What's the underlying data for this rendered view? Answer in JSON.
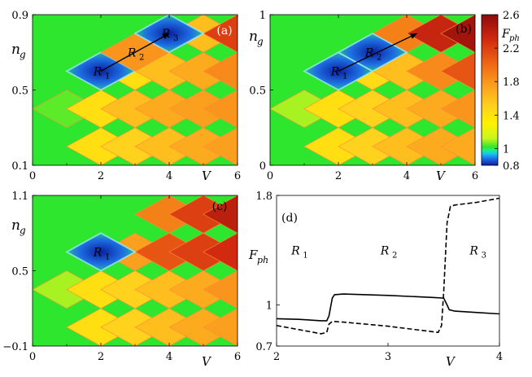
{
  "colors": {
    "background_green": "#2ee62e",
    "cb_stops": [
      "#0a1fa0",
      "#1f63e0",
      "#18c8f5",
      "#20f07a",
      "#2ee62e",
      "#c8f51e",
      "#fff200",
      "#ffd21e",
      "#fba01e",
      "#f06a14",
      "#d22a10",
      "#8c0a0a"
    ],
    "line_color": "#000000",
    "bound_color": "#ff8c3c"
  },
  "chart_data": [
    {
      "id": "a",
      "type": "heatmap",
      "panel_label": "(a)",
      "xlabel": "V",
      "ylabel": "n_g",
      "xlim": [
        0,
        6
      ],
      "ylim": [
        0.1,
        0.9
      ],
      "xticks": [
        "0",
        "2",
        "4",
        "6"
      ],
      "xtick_values": [
        0,
        2,
        4,
        6
      ],
      "yticks": [
        "0.1",
        "0.5",
        "0.9"
      ],
      "ytick_values": [
        0.1,
        0.5,
        0.9
      ],
      "row_spacing": 0.2,
      "ng_base": 0.5,
      "regions": [
        {
          "label": "R",
          "sub": "1",
          "v": 2.0,
          "n": 0.6,
          "value": 0.8
        },
        {
          "label": "R",
          "sub": "2",
          "v": 3.0,
          "n": 0.7,
          "value": 1.8
        },
        {
          "label": "R",
          "sub": "3",
          "v": 4.0,
          "n": 0.8,
          "value": 0.8
        }
      ],
      "arrow": {
        "from": [
          2.0,
          0.6
        ],
        "to": [
          4.0,
          0.8
        ]
      },
      "cells": [
        {
          "v": 1.0,
          "n": 0.4,
          "value": 1.05
        },
        {
          "v": 2.0,
          "n": 0.4,
          "value": 1.42
        },
        {
          "v": 3.0,
          "n": 0.4,
          "value": 1.6
        },
        {
          "v": 4.0,
          "n": 0.4,
          "value": 1.7
        },
        {
          "v": 5.0,
          "n": 0.4,
          "value": 1.75
        },
        {
          "v": 6.0,
          "n": 0.4,
          "value": 1.8
        },
        {
          "v": 2.0,
          "n": 0.2,
          "value": 1.42
        },
        {
          "v": 3.0,
          "n": 0.2,
          "value": 1.5
        },
        {
          "v": 4.0,
          "n": 0.2,
          "value": 1.6
        },
        {
          "v": 5.0,
          "n": 0.2,
          "value": 1.7
        },
        {
          "v": 6.0,
          "n": 0.2,
          "value": 1.75
        },
        {
          "v": 3.0,
          "n": 0.6,
          "value": 1.42
        },
        {
          "v": 4.0,
          "n": 0.6,
          "value": 1.6
        },
        {
          "v": 5.0,
          "n": 0.6,
          "value": 1.7
        },
        {
          "v": 6.0,
          "n": 0.6,
          "value": 1.85
        },
        {
          "v": 5.0,
          "n": 0.8,
          "value": 1.6
        },
        {
          "v": 6.0,
          "n": 0.8,
          "value": 2.2
        },
        {
          "v": 3.0,
          "n": 0.0,
          "value": 1.5
        },
        {
          "v": 4.0,
          "n": 0.0,
          "value": 1.6
        },
        {
          "v": 5.0,
          "n": 0.0,
          "value": 1.7
        },
        {
          "v": 6.0,
          "n": 0.0,
          "value": 1.75
        },
        {
          "v": 5.0,
          "n": 1.0,
          "value": 2.4
        },
        {
          "v": 6.0,
          "n": 1.0,
          "value": 2.4
        },
        {
          "v": 4.0,
          "n": 1.0,
          "value": 2.0
        }
      ]
    },
    {
      "id": "b",
      "type": "heatmap",
      "panel_label": "(b)",
      "xlabel": "V",
      "ylabel": "n_g",
      "xlim": [
        0,
        6
      ],
      "ylim": [
        0,
        1
      ],
      "xticks": [
        "0",
        "2",
        "4",
        "6"
      ],
      "xtick_values": [
        0,
        2,
        4,
        6
      ],
      "yticks": [
        "0",
        "0.5",
        "1"
      ],
      "ytick_values": [
        0,
        0.5,
        1
      ],
      "row_spacing": 0.25,
      "ng_base": 0.5,
      "regions": [
        {
          "label": "R",
          "sub": "1",
          "v": 2.0,
          "n": 0.625,
          "value": 0.8
        },
        {
          "label": "R",
          "sub": "2",
          "v": 3.0,
          "n": 0.75,
          "value": 0.8
        }
      ],
      "arrow": {
        "from": [
          2.0,
          0.625
        ],
        "to": [
          4.3,
          0.875
        ]
      },
      "cells": [
        {
          "v": 1.0,
          "n": 0.375,
          "value": 1.1
        },
        {
          "v": 2.0,
          "n": 0.375,
          "value": 1.42
        },
        {
          "v": 3.0,
          "n": 0.375,
          "value": 1.5
        },
        {
          "v": 4.0,
          "n": 0.375,
          "value": 1.6
        },
        {
          "v": 5.0,
          "n": 0.375,
          "value": 1.7
        },
        {
          "v": 6.0,
          "n": 0.375,
          "value": 1.8
        },
        {
          "v": 2.0,
          "n": 0.125,
          "value": 1.42
        },
        {
          "v": 3.0,
          "n": 0.125,
          "value": 1.5
        },
        {
          "v": 4.0,
          "n": 0.125,
          "value": 1.6
        },
        {
          "v": 5.0,
          "n": 0.125,
          "value": 1.7
        },
        {
          "v": 6.0,
          "n": 0.125,
          "value": 1.7
        },
        {
          "v": 3.0,
          "n": 0.625,
          "value": 1.45
        },
        {
          "v": 4.0,
          "n": 0.625,
          "value": 1.6
        },
        {
          "v": 5.0,
          "n": 0.625,
          "value": 1.85
        },
        {
          "v": 6.0,
          "n": 0.625,
          "value": 2.1
        },
        {
          "v": 4.0,
          "n": 0.875,
          "value": 1.9
        },
        {
          "v": 5.0,
          "n": 0.875,
          "value": 2.35
        },
        {
          "v": 6.0,
          "n": 0.875,
          "value": 2.5
        },
        {
          "v": 3.0,
          "n": -0.125,
          "value": 1.5
        },
        {
          "v": 4.0,
          "n": -0.125,
          "value": 1.6
        },
        {
          "v": 5.0,
          "n": -0.125,
          "value": 1.7
        },
        {
          "v": 6.0,
          "n": -0.125,
          "value": 1.7
        },
        {
          "v": 5.0,
          "n": 1.125,
          "value": 1.7
        },
        {
          "v": 6.0,
          "n": 1.125,
          "value": 1.7
        }
      ]
    },
    {
      "id": "c",
      "type": "heatmap",
      "panel_label": "(c)",
      "xlabel": "V",
      "ylabel": "n_g",
      "xlim": [
        0,
        6
      ],
      "ylim": [
        -0.1,
        1.1
      ],
      "xticks": [
        "0",
        "2",
        "4",
        "6"
      ],
      "xtick_values": [
        0,
        2,
        4,
        6
      ],
      "yticks": [
        "−0.1",
        "0.5",
        "1.1"
      ],
      "ytick_values": [
        -0.1,
        0.5,
        1.1
      ],
      "row_spacing": 0.3,
      "ng_base": 0.5,
      "regions": [
        {
          "label": "R",
          "sub": "1",
          "v": 2.0,
          "n": 0.65,
          "value": 0.8
        }
      ],
      "cells": [
        {
          "v": 1.0,
          "n": 0.35,
          "value": 1.1
        },
        {
          "v": 2.0,
          "n": 0.35,
          "value": 1.42
        },
        {
          "v": 3.0,
          "n": 0.35,
          "value": 1.5
        },
        {
          "v": 4.0,
          "n": 0.35,
          "value": 1.6
        },
        {
          "v": 5.0,
          "n": 0.35,
          "value": 1.7
        },
        {
          "v": 6.0,
          "n": 0.35,
          "value": 1.8
        },
        {
          "v": 2.0,
          "n": 0.05,
          "value": 1.42
        },
        {
          "v": 3.0,
          "n": 0.05,
          "value": 1.5
        },
        {
          "v": 4.0,
          "n": 0.05,
          "value": 1.6
        },
        {
          "v": 5.0,
          "n": 0.05,
          "value": 1.7
        },
        {
          "v": 6.0,
          "n": 0.05,
          "value": 1.75
        },
        {
          "v": 3.0,
          "n": 0.65,
          "value": 1.75
        },
        {
          "v": 4.0,
          "n": 0.65,
          "value": 2.1
        },
        {
          "v": 5.0,
          "n": 0.65,
          "value": 2.2
        },
        {
          "v": 6.0,
          "n": 0.65,
          "value": 2.3
        },
        {
          "v": 4.0,
          "n": 0.95,
          "value": 1.9
        },
        {
          "v": 5.0,
          "n": 0.95,
          "value": 2.2
        },
        {
          "v": 6.0,
          "n": 0.95,
          "value": 2.4
        },
        {
          "v": 3.0,
          "n": -0.25,
          "value": 1.5
        },
        {
          "v": 4.0,
          "n": -0.25,
          "value": 1.6
        },
        {
          "v": 5.0,
          "n": -0.25,
          "value": 1.7
        },
        {
          "v": 6.0,
          "n": -0.25,
          "value": 1.75
        },
        {
          "v": 5.0,
          "n": 1.25,
          "value": 2.2
        },
        {
          "v": 6.0,
          "n": 1.25,
          "value": 2.4
        }
      ]
    },
    {
      "id": "d",
      "type": "line",
      "panel_label": "(d)",
      "xlabel": "V",
      "ylabel": "F_ph",
      "xlim": [
        2,
        4
      ],
      "ylim": [
        0.7,
        1.8
      ],
      "xticks": [
        "2",
        "3",
        "4"
      ],
      "xtick_values": [
        2,
        3,
        4
      ],
      "yticks": [
        "0.7",
        "1",
        "1.8"
      ],
      "ytick_values": [
        0.7,
        1.0,
        1.8
      ],
      "region_labels": [
        {
          "label": "R",
          "sub": "1",
          "x": 2.2,
          "y": 1.4
        },
        {
          "label": "R",
          "sub": "2",
          "x": 3.0,
          "y": 1.4
        },
        {
          "label": "R",
          "sub": "3",
          "x": 3.8,
          "y": 1.4
        }
      ],
      "series": [
        {
          "style": "solid",
          "x": [
            2.0,
            2.2,
            2.4,
            2.45,
            2.47,
            2.5,
            2.52,
            2.6,
            3.0,
            3.4,
            3.5,
            3.53,
            3.55,
            3.6,
            3.8,
            4.0
          ],
          "y": [
            0.9,
            0.895,
            0.885,
            0.885,
            0.92,
            1.05,
            1.075,
            1.08,
            1.07,
            1.055,
            1.05,
            1.0,
            0.965,
            0.955,
            0.945,
            0.935
          ]
        },
        {
          "style": "dashed",
          "x": [
            2.0,
            2.2,
            2.4,
            2.45,
            2.47,
            2.5,
            2.6,
            3.0,
            3.3,
            3.45,
            3.48,
            3.5,
            3.53,
            3.56,
            3.6,
            3.8,
            4.0
          ],
          "y": [
            0.85,
            0.82,
            0.79,
            0.8,
            0.86,
            0.88,
            0.875,
            0.845,
            0.815,
            0.8,
            0.85,
            1.1,
            1.6,
            1.72,
            1.73,
            1.75,
            1.78
          ]
        }
      ]
    }
  ],
  "colorbar": {
    "label": "F_ph",
    "vmin": 0.8,
    "vmax": 2.6,
    "ticks": [
      "2.6",
      "2.2",
      "1.8",
      "1.4",
      "1",
      "0.8"
    ],
    "tick_values": [
      2.6,
      2.2,
      1.8,
      1.4,
      1.0,
      0.8
    ]
  }
}
